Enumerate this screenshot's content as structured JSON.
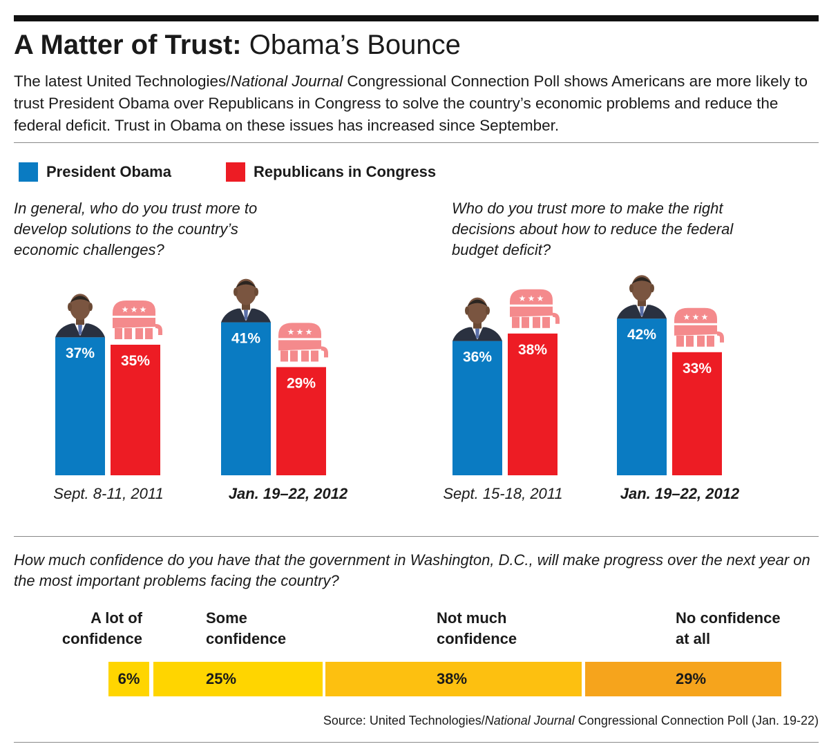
{
  "title": {
    "bold": "A Matter of Trust:",
    "light": "Obama’s Bounce"
  },
  "intro": {
    "part1": "The latest United Technologies/",
    "italic": "National Journal",
    "part2": " Congressional Connection Poll shows Americans are more likely to trust President Obama over Republicans in Congress to solve the country’s economic problems and reduce the federal deficit. Trust in Obama on these issues has increased since September."
  },
  "legend": [
    {
      "label": "President Obama",
      "color": "#0a7bc2"
    },
    {
      "label": "Republicans in Congress",
      "color": "#ed1c24"
    }
  ],
  "colors": {
    "obama": "#0a7bc2",
    "gop": "#ed1c24",
    "gop_icon": "#f48a8c"
  },
  "questions": {
    "q1": "In general, who do you trust more to develop solutions to the country’s economic challenges?",
    "q2": "Who do you trust more to make the right decisions about how to reduce the federal budget deficit?",
    "q3": "How much confidence do you have that the government in Washington, D.C., will make progress over the next year on the most important problems facing the country?"
  },
  "chart_data": [
    {
      "type": "bar",
      "question": "q1",
      "categories": [
        "Sept. 8-11, 2011",
        "Jan. 19–22, 2012"
      ],
      "category_bold": [
        false,
        true
      ],
      "series": [
        {
          "name": "President Obama",
          "values": [
            37,
            41
          ]
        },
        {
          "name": "Republicans in Congress",
          "values": [
            35,
            29
          ]
        }
      ],
      "unit": "%"
    },
    {
      "type": "bar",
      "question": "q2",
      "categories": [
        "Sept. 15-18, 2011",
        "Jan. 19–22, 2012"
      ],
      "category_bold": [
        false,
        true
      ],
      "series": [
        {
          "name": "President Obama",
          "values": [
            36,
            42
          ]
        },
        {
          "name": "Republicans in Congress",
          "values": [
            38,
            33
          ]
        }
      ],
      "unit": "%"
    },
    {
      "type": "bar",
      "stacked": true,
      "question": "q3",
      "categories": [
        "A lot of confidence",
        "Some confidence",
        "Not much confidence",
        "No confidence at all"
      ],
      "values": [
        6,
        25,
        38,
        29
      ],
      "labels": [
        "6%",
        "25%",
        "38%",
        "29%"
      ],
      "colors": [
        "#ffd500",
        "#ffd500",
        "#fdc010",
        "#f6a41c"
      ]
    }
  ],
  "confidence": {
    "labels": [
      {
        "line1": "A lot of",
        "line2": "confidence"
      },
      {
        "line1": "Some",
        "line2": "confidence"
      },
      {
        "line1": "Not much",
        "line2": "confidence"
      },
      {
        "line1": "No confidence",
        "line2": "at all"
      }
    ],
    "values": [
      "6%",
      "25%",
      "38%",
      "29%"
    ]
  },
  "source": {
    "part1": "Source: United Technologies/",
    "italic": "National Journal",
    "part2": " Congressional Connection Poll (Jan. 19-22)"
  }
}
